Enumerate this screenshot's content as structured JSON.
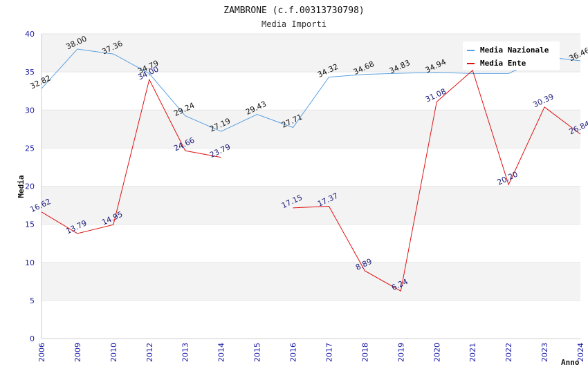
{
  "chart_data": {
    "type": "line",
    "title": "ZAMBRONE (c.f.00313730798)",
    "subtitle": "Media Importi",
    "xlabel": "Anno",
    "ylabel": "Media",
    "ylim": [
      0,
      40
    ],
    "yticks": [
      "0",
      "5",
      "10",
      "15",
      "20",
      "25",
      "30",
      "35",
      "40"
    ],
    "categories": [
      "2006",
      "2009",
      "2010",
      "2012",
      "2013",
      "2014",
      "2015",
      "2016",
      "2017",
      "2018",
      "2019",
      "2020",
      "2021",
      "2022",
      "2023",
      "2024"
    ],
    "legend_position": "top-right",
    "series": [
      {
        "name": "Media Nazionale",
        "color": "#5aa0e0",
        "values": [
          32.82,
          38.0,
          37.36,
          34.79,
          29.24,
          27.19,
          29.43,
          27.71,
          34.32,
          34.68,
          34.83,
          34.94,
          34.8,
          34.8,
          37.0,
          36.46
        ],
        "labels": [
          "32.82",
          "38.00",
          "37.36",
          "34.79",
          "29.24",
          "27.19",
          "29.43",
          "27.71",
          "34.32",
          "34.68",
          "34.83",
          "34.94",
          "",
          "",
          "",
          "36.46"
        ]
      },
      {
        "name": "Media Ente",
        "color": "#e01010",
        "values": [
          16.62,
          13.79,
          14.95,
          34.0,
          24.66,
          23.79,
          null,
          17.15,
          17.37,
          8.89,
          6.24,
          31.08,
          35.2,
          20.2,
          30.39,
          26.84
        ],
        "labels": [
          "16.62",
          "13.79",
          "14.95",
          "34.00",
          "24.66",
          "23.79",
          "",
          "17.15",
          "17.37",
          "8.89",
          "6.24",
          "31.08",
          "",
          "20.20",
          "30.39",
          "26.84"
        ]
      }
    ]
  }
}
